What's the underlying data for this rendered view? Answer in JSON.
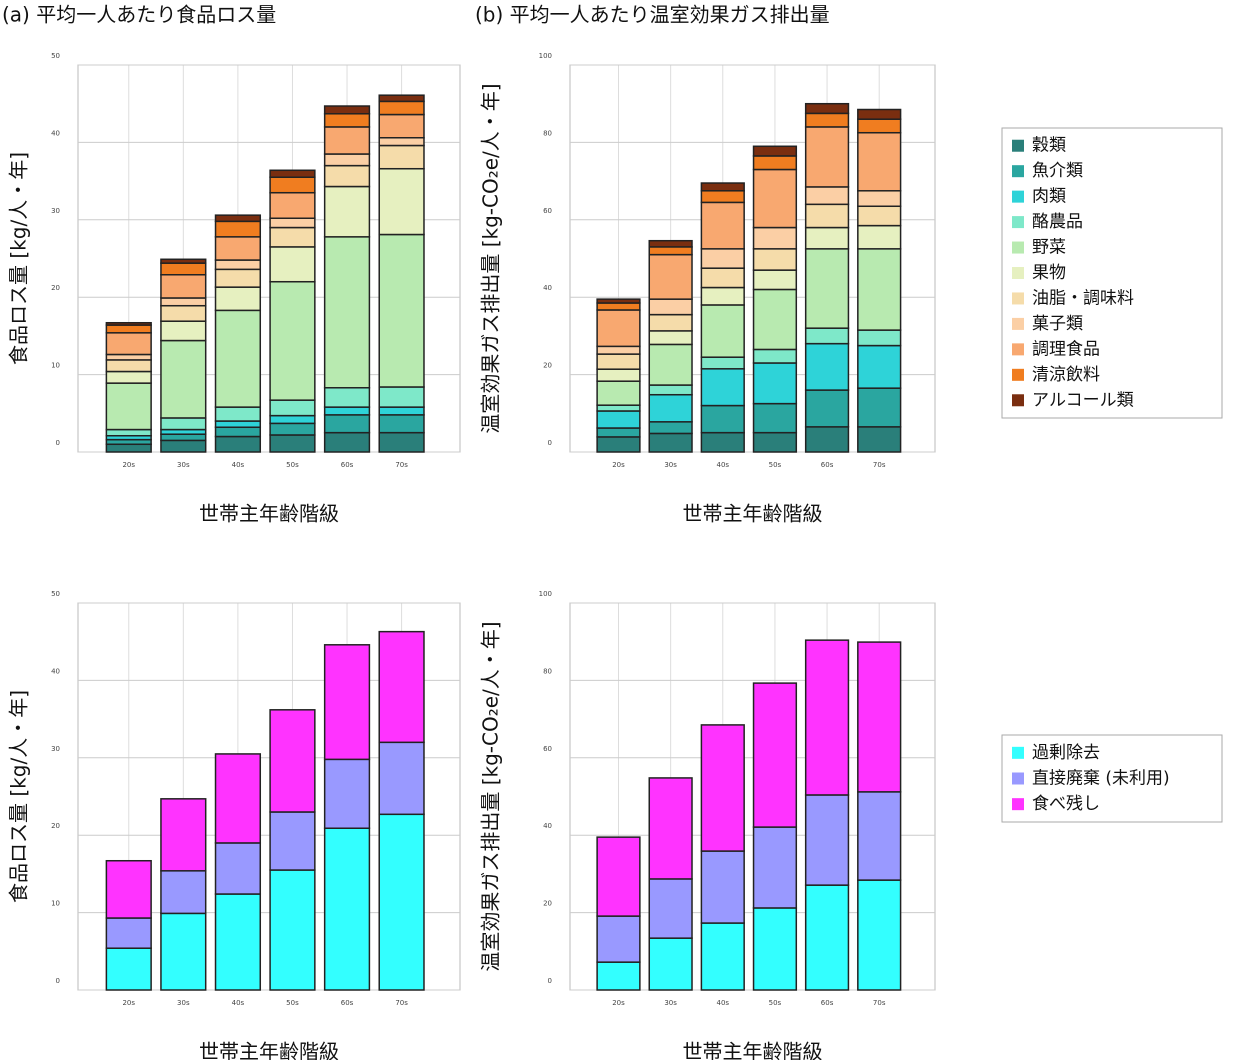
{
  "chart_data": [
    {
      "type": "stacked_bar",
      "title": "(a) 平均一人あたり食品ロス量",
      "ylabel": "食品ロス量 [kg/人・年]",
      "xlabel": "世帯主年齢階級",
      "categories": [
        "20s",
        "30s",
        "40s",
        "50s",
        "60s",
        "70s"
      ],
      "ylim": [
        0,
        50
      ],
      "yticks": [
        0,
        10,
        20,
        30,
        40,
        50
      ],
      "grid": true,
      "series": [
        {
          "color": "#2a7f7a",
          "values": [
            1.0,
            1.5,
            2.0,
            2.2,
            2.5,
            2.5
          ]
        },
        {
          "color": "#2aa6a0",
          "values": [
            0.6,
            0.8,
            1.2,
            1.5,
            2.3,
            2.3
          ]
        },
        {
          "color": "#2ed3d8",
          "values": [
            0.5,
            0.6,
            0.8,
            1.0,
            1.0,
            1.0
          ]
        },
        {
          "color": "#7ee8c9",
          "values": [
            0.8,
            1.5,
            1.8,
            2.0,
            2.5,
            2.6
          ]
        },
        {
          "color": "#b8eab0",
          "values": [
            6.0,
            10.0,
            12.5,
            15.3,
            19.5,
            19.7
          ]
        },
        {
          "color": "#e6f0c0",
          "values": [
            1.5,
            2.5,
            3.0,
            4.5,
            6.5,
            8.5
          ]
        },
        {
          "color": "#f5dcaa",
          "values": [
            1.5,
            2.0,
            2.3,
            2.5,
            2.7,
            3.0
          ]
        },
        {
          "color": "#fbcfa5",
          "values": [
            0.7,
            1.0,
            1.2,
            1.2,
            1.5,
            1.0
          ]
        },
        {
          "color": "#f8a870",
          "values": [
            2.8,
            3.0,
            3.0,
            3.3,
            3.5,
            3.0
          ]
        },
        {
          "color": "#f07d20",
          "values": [
            1.0,
            1.5,
            2.0,
            2.0,
            1.7,
            1.7
          ]
        },
        {
          "color": "#7a2e10",
          "values": [
            0.3,
            0.5,
            0.8,
            0.9,
            1.0,
            0.8
          ]
        }
      ]
    },
    {
      "type": "stacked_bar",
      "title": "(b) 平均一人あたり温室効果ガス排出量",
      "ylabel": "温室効果ガス排出量 [kg-CO₂e/人・年]",
      "xlabel": "世帯主年齢階級",
      "categories": [
        "20s",
        "30s",
        "40s",
        "50s",
        "60s",
        "70s"
      ],
      "ylim": [
        0,
        100
      ],
      "yticks": [
        0,
        20,
        40,
        60,
        80,
        100
      ],
      "grid": true,
      "legend": "right",
      "series": [
        {
          "name": "穀類",
          "color": "#2a7f7a",
          "values": [
            3.9,
            4.8,
            5.0,
            5.0,
            6.5,
            6.5
          ]
        },
        {
          "name": "魚介類",
          "color": "#2aa6a0",
          "values": [
            2.3,
            3.0,
            7.0,
            7.5,
            9.5,
            10.0
          ]
        },
        {
          "name": "肉類",
          "color": "#2ed3d8",
          "values": [
            4.4,
            7.0,
            9.5,
            10.5,
            12.0,
            11.0
          ]
        },
        {
          "name": "酪農品",
          "color": "#7ee8c9",
          "values": [
            1.5,
            2.5,
            3.0,
            3.5,
            4.0,
            4.0
          ]
        },
        {
          "name": "野菜",
          "color": "#b8eab0",
          "values": [
            6.2,
            10.5,
            13.5,
            15.5,
            20.5,
            21.0
          ]
        },
        {
          "name": "果物",
          "color": "#e6f0c0",
          "values": [
            3.1,
            3.5,
            4.5,
            5.0,
            5.5,
            6.0
          ]
        },
        {
          "name": "油脂・調味料",
          "color": "#f5dcaa",
          "values": [
            3.9,
            4.2,
            5.0,
            5.5,
            6.0,
            5.0
          ]
        },
        {
          "name": "菓子類",
          "color": "#fbcfa5",
          "values": [
            2.0,
            4.0,
            5.0,
            5.5,
            4.5,
            4.0
          ]
        },
        {
          "name": "調理食品",
          "color": "#f8a870",
          "values": [
            9.4,
            11.5,
            12.0,
            15.0,
            15.5,
            15.0
          ]
        },
        {
          "name": "清涼飲料",
          "color": "#f07d20",
          "values": [
            1.8,
            2.0,
            3.0,
            3.5,
            3.5,
            3.5
          ]
        },
        {
          "name": "アルコール類",
          "color": "#7a2e10",
          "values": [
            1.0,
            1.6,
            2.0,
            2.5,
            2.5,
            2.5
          ]
        }
      ]
    },
    {
      "type": "stacked_bar",
      "ylabel": "食品ロス量 [kg/人・年]",
      "xlabel": "世帯主年齢階級",
      "categories": [
        "20s",
        "30s",
        "40s",
        "50s",
        "60s",
        "70s"
      ],
      "ylim": [
        0,
        50
      ],
      "yticks": [
        0,
        10,
        20,
        30,
        40,
        50
      ],
      "grid": true,
      "series": [
        {
          "color": "#33ffff",
          "values": [
            5.4,
            9.9,
            12.4,
            15.5,
            20.9,
            22.7
          ]
        },
        {
          "color": "#9999ff",
          "values": [
            3.9,
            5.5,
            6.6,
            7.5,
            8.9,
            9.3
          ]
        },
        {
          "color": "#ff33ff",
          "values": [
            7.4,
            9.3,
            11.5,
            13.2,
            14.8,
            14.3
          ]
        }
      ]
    },
    {
      "type": "stacked_bar",
      "ylabel": "温室効果ガス排出量 [kg-CO₂e/人・年]",
      "xlabel": "世帯主年齢階級",
      "categories": [
        "20s",
        "30s",
        "40s",
        "50s",
        "60s",
        "70s"
      ],
      "ylim": [
        0,
        100
      ],
      "yticks": [
        0,
        20,
        40,
        60,
        80,
        100
      ],
      "grid": true,
      "legend": "right",
      "series": [
        {
          "name": "過剰除去",
          "color": "#33ffff",
          "values": [
            7.2,
            13.4,
            17.3,
            21.2,
            27.1,
            28.4
          ]
        },
        {
          "name": "直接廃棄 (未利用)",
          "color": "#9999ff",
          "values": [
            11.9,
            15.3,
            18.6,
            20.9,
            23.3,
            22.8
          ]
        },
        {
          "name": "食べ残し",
          "color": "#ff33ff",
          "values": [
            20.4,
            26.1,
            32.6,
            37.2,
            40.0,
            38.7
          ]
        }
      ]
    }
  ]
}
